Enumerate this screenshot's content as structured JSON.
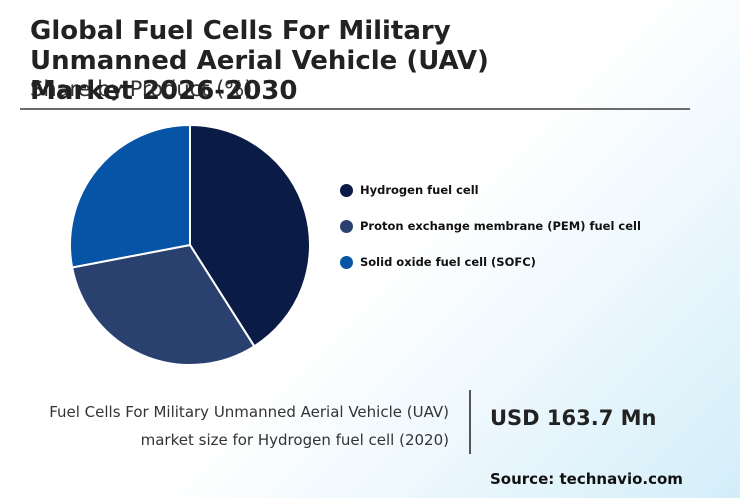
{
  "header": {
    "title": "Global Fuel Cells For Military Unmanned Aerial Vehicle (UAV) Market 2026-2030",
    "subtitle": "Share by Product (%)"
  },
  "chart_data": {
    "type": "pie",
    "categories": [
      "Hydrogen fuel cell",
      "Proton exchange membrane (PEM) fuel cell",
      "Solid oxide fuel cell (SOFC)"
    ],
    "values": [
      41,
      31,
      28
    ],
    "colors": [
      "#0a1c45",
      "#2a4170",
      "#0654a5"
    ],
    "legend_position": "right"
  },
  "legend": {
    "items": [
      {
        "label": "Hydrogen fuel cell",
        "color": "#0a1c45"
      },
      {
        "label": "Proton exchange membrane (PEM) fuel cell",
        "color": "#2a4170"
      },
      {
        "label": "Solid oxide fuel cell (SOFC)",
        "color": "#0654a5"
      }
    ]
  },
  "footer": {
    "description_line1": "Fuel Cells For Military Unmanned Aerial Vehicle (UAV)",
    "description_line2": "market size for Hydrogen fuel cell (2020)",
    "stat_value": "USD 163.7 Mn",
    "source": "Source: technavio.com"
  }
}
